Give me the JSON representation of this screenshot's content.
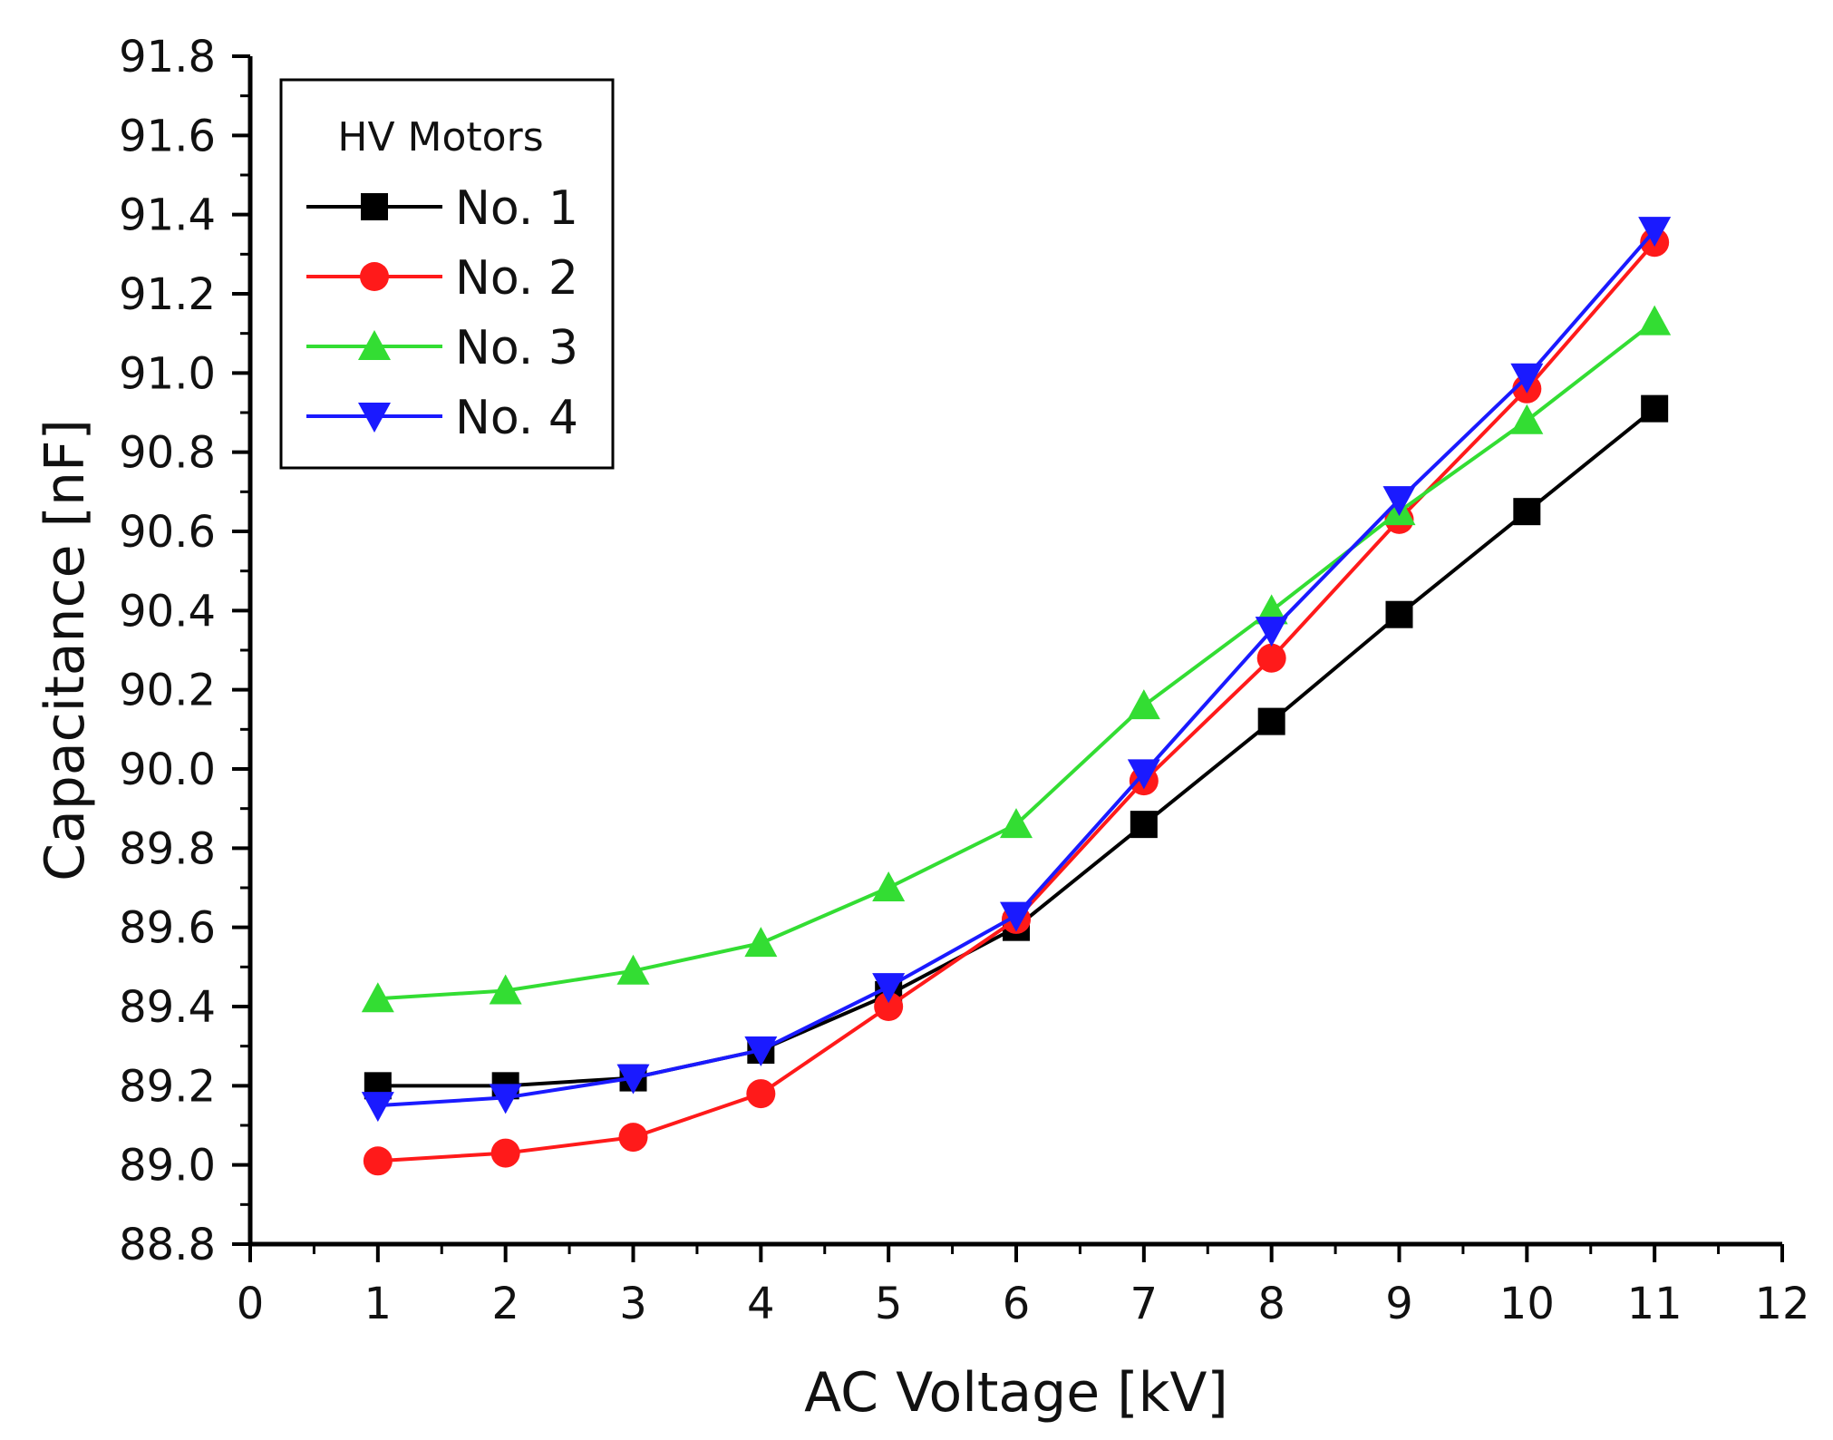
{
  "chart_data": {
    "type": "line",
    "title": "",
    "xlabel": "AC Voltage [kV]",
    "ylabel": "Capacitance [nF]",
    "xlim": [
      0,
      12
    ],
    "ylim": [
      88.8,
      91.8
    ],
    "x_ticks": [
      "0",
      "1",
      "2",
      "3",
      "4",
      "5",
      "6",
      "7",
      "8",
      "9",
      "10",
      "11",
      "12"
    ],
    "y_ticks": [
      "88.8",
      "89.0",
      "89.2",
      "89.4",
      "89.6",
      "89.8",
      "90.0",
      "90.2",
      "90.4",
      "90.6",
      "90.8",
      "91.0",
      "91.2",
      "91.4",
      "91.6",
      "91.8"
    ],
    "x": [
      1,
      2,
      3,
      4,
      5,
      6,
      7,
      8,
      9,
      10,
      11
    ],
    "grid": false,
    "legend": {
      "title": "HV Motors",
      "position": "top-left"
    },
    "series": [
      {
        "name": "No. 1",
        "color": "#000000",
        "marker": "square",
        "values": [
          89.2,
          89.2,
          89.22,
          89.29,
          89.43,
          89.6,
          89.86,
          90.12,
          90.39,
          90.65,
          90.91
        ]
      },
      {
        "name": "No. 2",
        "color": "#ff1a1a",
        "marker": "circle",
        "values": [
          89.01,
          89.03,
          89.07,
          89.18,
          89.4,
          89.62,
          89.97,
          90.28,
          90.63,
          90.96,
          91.33
        ]
      },
      {
        "name": "No. 3",
        "color": "#33dd33",
        "marker": "triangle-up",
        "values": [
          89.42,
          89.44,
          89.49,
          89.56,
          89.7,
          89.86,
          90.16,
          90.4,
          90.65,
          90.88,
          91.13
        ]
      },
      {
        "name": "No. 4",
        "color": "#1a1aff",
        "marker": "triangle-down",
        "values": [
          89.15,
          89.17,
          89.22,
          89.29,
          89.45,
          89.63,
          89.99,
          90.35,
          90.68,
          90.99,
          91.36
        ]
      }
    ]
  }
}
